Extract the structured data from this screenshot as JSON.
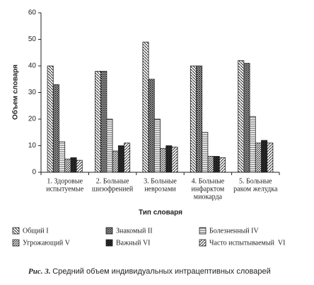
{
  "chart_data": {
    "type": "bar",
    "y_label": "Объем словаря",
    "x_label": "Тип словаря",
    "caption_label": "Рис. 3.",
    "caption_text": "Средний объем индивидуальных интрацептивных словарей",
    "categories": [
      [
        "1. Здоровые",
        "испытуемые"
      ],
      [
        "2. Больные",
        "шизофренией"
      ],
      [
        "3. Больные",
        "неврозами"
      ],
      [
        "4. Больные",
        "инфарктом",
        "миокарда"
      ],
      [
        "5. Больные",
        "раком желудка"
      ]
    ],
    "series": [
      {
        "name": "Общий I",
        "color": "#222",
        "pattern": "diag-left",
        "values": [
          40,
          38,
          49,
          40,
          42
        ]
      },
      {
        "name": "Знакомый II",
        "color": "#222",
        "pattern": "cross",
        "values": [
          33,
          38,
          35,
          40,
          41
        ]
      },
      {
        "name": "Болезненный IV",
        "color": "#222",
        "pattern": "horizontal",
        "values": [
          11.5,
          20,
          20,
          15,
          21
        ]
      },
      {
        "name": "Угрожающий V",
        "color": "#222",
        "pattern": "diag-right-dense",
        "values": [
          5,
          8,
          9,
          6,
          11
        ]
      },
      {
        "name": "Важный VI",
        "color": "#222",
        "pattern": "dark-cross",
        "values": [
          5.5,
          10,
          10,
          6,
          12
        ]
      },
      {
        "name": "Часто испытываемый  VI",
        "color": "#222",
        "pattern": "diag-right",
        "values": [
          4.5,
          11,
          9.5,
          5.5,
          11
        ]
      }
    ],
    "ylim": [
      0,
      60
    ],
    "yticks": [
      0,
      10,
      20,
      30,
      40,
      50,
      60
    ]
  }
}
